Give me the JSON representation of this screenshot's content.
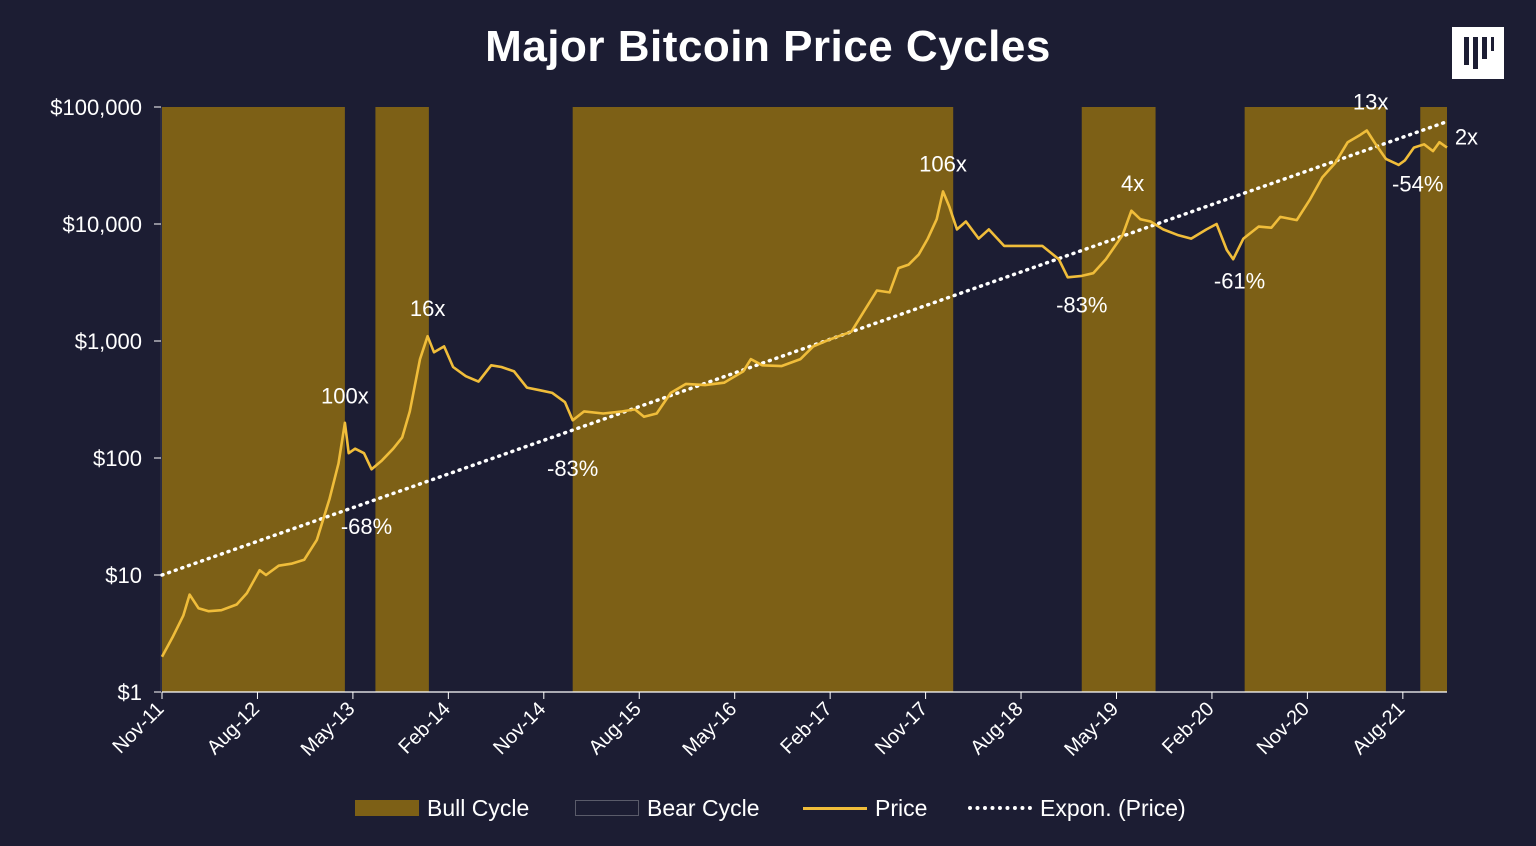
{
  "colors": {
    "background": "#1c1d33",
    "bull": "#7d6016",
    "price": "#f0bd3a",
    "trend": "#ffffff"
  },
  "logo": {
    "icon": "pantera-logo-icon"
  },
  "chart_data": {
    "type": "line",
    "title": "Major Bitcoin Price Cycles",
    "y_scale": "log",
    "ylim": [
      1,
      100000
    ],
    "y_ticks": [
      {
        "value": 1,
        "label": "$1"
      },
      {
        "value": 10,
        "label": "$10"
      },
      {
        "value": 100,
        "label": "$100"
      },
      {
        "value": 1000,
        "label": "$1,000"
      },
      {
        "value": 10000,
        "label": "$10,000"
      },
      {
        "value": 100000,
        "label": "$100,000"
      }
    ],
    "x_range": [
      "2011-11",
      "2021-10"
    ],
    "x_ticks": [
      {
        "t": 2011.833,
        "label": "Nov-11"
      },
      {
        "t": 2012.583,
        "label": "Aug-12"
      },
      {
        "t": 2013.333,
        "label": "May-13"
      },
      {
        "t": 2014.083,
        "label": "Feb-14"
      },
      {
        "t": 2014.833,
        "label": "Nov-14"
      },
      {
        "t": 2015.583,
        "label": "Aug-15"
      },
      {
        "t": 2016.333,
        "label": "May-16"
      },
      {
        "t": 2017.083,
        "label": "Feb-17"
      },
      {
        "t": 2017.833,
        "label": "Nov-17"
      },
      {
        "t": 2018.583,
        "label": "Aug-18"
      },
      {
        "t": 2019.333,
        "label": "May-19"
      },
      {
        "t": 2020.083,
        "label": "Feb-20"
      },
      {
        "t": 2020.833,
        "label": "Nov-20"
      },
      {
        "t": 2021.583,
        "label": "Aug-21"
      }
    ],
    "cycles": [
      {
        "type": "bull",
        "start": 2011.833,
        "end": 2013.27
      },
      {
        "type": "bear",
        "start": 2013.27,
        "end": 2013.51
      },
      {
        "type": "bull",
        "start": 2013.51,
        "end": 2013.93
      },
      {
        "type": "bear",
        "start": 2013.93,
        "end": 2015.06
      },
      {
        "type": "bull",
        "start": 2015.06,
        "end": 2018.05
      },
      {
        "type": "bear",
        "start": 2018.05,
        "end": 2019.06
      },
      {
        "type": "bull",
        "start": 2019.06,
        "end": 2019.64
      },
      {
        "type": "bear",
        "start": 2019.64,
        "end": 2020.34
      },
      {
        "type": "bull",
        "start": 2020.34,
        "end": 2021.45
      },
      {
        "type": "bear",
        "start": 2021.45,
        "end": 2021.72
      },
      {
        "type": "bull",
        "start": 2021.72,
        "end": 2021.93
      }
    ],
    "series": [
      {
        "name": "Price",
        "points": [
          [
            2011.833,
            2.0
          ],
          [
            2011.92,
            3.0
          ],
          [
            2012.0,
            4.5
          ],
          [
            2012.05,
            6.8
          ],
          [
            2012.12,
            5.2
          ],
          [
            2012.2,
            4.9
          ],
          [
            2012.3,
            5.0
          ],
          [
            2012.42,
            5.6
          ],
          [
            2012.5,
            7.0
          ],
          [
            2012.6,
            11.0
          ],
          [
            2012.65,
            10.0
          ],
          [
            2012.75,
            12.0
          ],
          [
            2012.85,
            12.5
          ],
          [
            2012.95,
            13.5
          ],
          [
            2013.05,
            20.0
          ],
          [
            2013.15,
            45.0
          ],
          [
            2013.22,
            90.0
          ],
          [
            2013.27,
            200.0
          ],
          [
            2013.3,
            110.0
          ],
          [
            2013.35,
            120.0
          ],
          [
            2013.42,
            110.0
          ],
          [
            2013.48,
            80.0
          ],
          [
            2013.56,
            95.0
          ],
          [
            2013.65,
            120.0
          ],
          [
            2013.72,
            150.0
          ],
          [
            2013.78,
            250.0
          ],
          [
            2013.86,
            700.0
          ],
          [
            2013.92,
            1100.0
          ],
          [
            2013.97,
            800.0
          ],
          [
            2014.05,
            900.0
          ],
          [
            2014.12,
            600.0
          ],
          [
            2014.22,
            500.0
          ],
          [
            2014.32,
            450.0
          ],
          [
            2014.42,
            620.0
          ],
          [
            2014.5,
            600.0
          ],
          [
            2014.6,
            550.0
          ],
          [
            2014.7,
            400.0
          ],
          [
            2014.8,
            380.0
          ],
          [
            2014.9,
            360.0
          ],
          [
            2015.0,
            300.0
          ],
          [
            2015.06,
            210.0
          ],
          [
            2015.15,
            250.0
          ],
          [
            2015.3,
            240.0
          ],
          [
            2015.45,
            250.0
          ],
          [
            2015.55,
            260.0
          ],
          [
            2015.62,
            225.0
          ],
          [
            2015.72,
            240.0
          ],
          [
            2015.83,
            360.0
          ],
          [
            2015.95,
            430.0
          ],
          [
            2016.1,
            420.0
          ],
          [
            2016.25,
            440.0
          ],
          [
            2016.4,
            550.0
          ],
          [
            2016.46,
            700.0
          ],
          [
            2016.55,
            620.0
          ],
          [
            2016.7,
            610.0
          ],
          [
            2016.85,
            700.0
          ],
          [
            2016.95,
            900.0
          ],
          [
            2017.05,
            1000.0
          ],
          [
            2017.15,
            1100.0
          ],
          [
            2017.25,
            1200.0
          ],
          [
            2017.35,
            1800.0
          ],
          [
            2017.45,
            2700.0
          ],
          [
            2017.55,
            2600.0
          ],
          [
            2017.62,
            4200.0
          ],
          [
            2017.7,
            4500.0
          ],
          [
            2017.78,
            5500.0
          ],
          [
            2017.85,
            7500.0
          ],
          [
            2017.92,
            11000.0
          ],
          [
            2017.97,
            19000.0
          ],
          [
            2018.02,
            14000.0
          ],
          [
            2018.08,
            9000.0
          ],
          [
            2018.15,
            10500.0
          ],
          [
            2018.25,
            7500.0
          ],
          [
            2018.33,
            9000.0
          ],
          [
            2018.45,
            6500.0
          ],
          [
            2018.6,
            6500.0
          ],
          [
            2018.75,
            6500.0
          ],
          [
            2018.88,
            5000.0
          ],
          [
            2018.95,
            3500.0
          ],
          [
            2019.06,
            3600.0
          ],
          [
            2019.15,
            3800.0
          ],
          [
            2019.25,
            5000.0
          ],
          [
            2019.38,
            8000.0
          ],
          [
            2019.45,
            13000.0
          ],
          [
            2019.52,
            11000.0
          ],
          [
            2019.6,
            10500.0
          ],
          [
            2019.7,
            9000.0
          ],
          [
            2019.82,
            8000.0
          ],
          [
            2019.92,
            7500.0
          ],
          [
            2020.04,
            9000.0
          ],
          [
            2020.12,
            10000.0
          ],
          [
            2020.2,
            6000.0
          ],
          [
            2020.25,
            5000.0
          ],
          [
            2020.33,
            7500.0
          ],
          [
            2020.45,
            9500.0
          ],
          [
            2020.55,
            9300.0
          ],
          [
            2020.62,
            11500.0
          ],
          [
            2020.75,
            10800.0
          ],
          [
            2020.85,
            16000.0
          ],
          [
            2020.95,
            25000.0
          ],
          [
            2021.05,
            33000.0
          ],
          [
            2021.15,
            50000.0
          ],
          [
            2021.25,
            58000.0
          ],
          [
            2021.3,
            63000.0
          ],
          [
            2021.37,
            48000.0
          ],
          [
            2021.45,
            36000.0
          ],
          [
            2021.55,
            32000.0
          ],
          [
            2021.6,
            35000.0
          ],
          [
            2021.67,
            45000.0
          ],
          [
            2021.75,
            48000.0
          ],
          [
            2021.82,
            42000.0
          ],
          [
            2021.87,
            50000.0
          ],
          [
            2021.93,
            45000.0
          ]
        ]
      },
      {
        "name": "Expon. (Price)",
        "points": [
          [
            2011.833,
            10.0
          ],
          [
            2021.93,
            75000.0
          ]
        ]
      }
    ],
    "annotations": [
      {
        "text": "100x",
        "t": 2013.27,
        "v": 260,
        "pos": "above"
      },
      {
        "text": "-68%",
        "t": 2013.44,
        "v": 32,
        "pos": "below"
      },
      {
        "text": "16x",
        "t": 2013.92,
        "v": 1450,
        "pos": "above"
      },
      {
        "text": "-83%",
        "t": 2015.06,
        "v": 100,
        "pos": "below"
      },
      {
        "text": "106x",
        "t": 2017.97,
        "v": 25000,
        "pos": "above"
      },
      {
        "text": "-83%",
        "t": 2019.06,
        "v": 2500,
        "pos": "below"
      },
      {
        "text": "4x",
        "t": 2019.46,
        "v": 17000,
        "pos": "above"
      },
      {
        "text": "-61%",
        "t": 2020.3,
        "v": 4000,
        "pos": "below"
      },
      {
        "text": "13x",
        "t": 2021.33,
        "v": 85000,
        "pos": "above"
      },
      {
        "text": "2x",
        "t": 2021.96,
        "v": 48000,
        "pos": "right"
      },
      {
        "text": "-54%",
        "t": 2021.7,
        "v": 27000,
        "pos": "below"
      }
    ],
    "legend": [
      {
        "key": "bull",
        "label": "Bull Cycle"
      },
      {
        "key": "bear",
        "label": "Bear Cycle"
      },
      {
        "key": "price",
        "label": "Price"
      },
      {
        "key": "trend",
        "label": "Expon. (Price)"
      }
    ]
  }
}
